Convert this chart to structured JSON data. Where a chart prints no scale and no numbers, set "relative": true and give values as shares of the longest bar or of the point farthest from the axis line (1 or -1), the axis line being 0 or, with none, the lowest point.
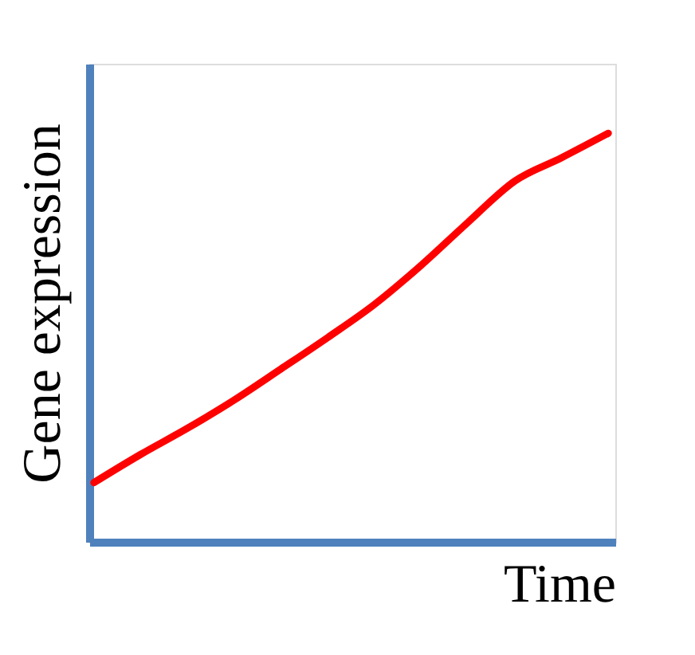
{
  "chart_data": {
    "type": "line",
    "relative": true,
    "xlabel": "Time",
    "ylabel": "Gene expression",
    "categories": [
      null,
      null,
      null,
      null,
      null,
      null,
      null,
      null,
      null,
      null,
      null,
      null
    ],
    "series": [
      {
        "color": "#ff0000",
        "values": [
          0.145,
          0.214,
          0.278,
          0.347,
          0.423,
          0.5,
          0.581,
          0.677,
          0.782,
          0.883,
          0.94,
          1
        ]
      }
    ],
    "tick_labels": false,
    "grid": false,
    "legend": false,
    "marker": "none",
    "line_style": "solid"
  }
}
